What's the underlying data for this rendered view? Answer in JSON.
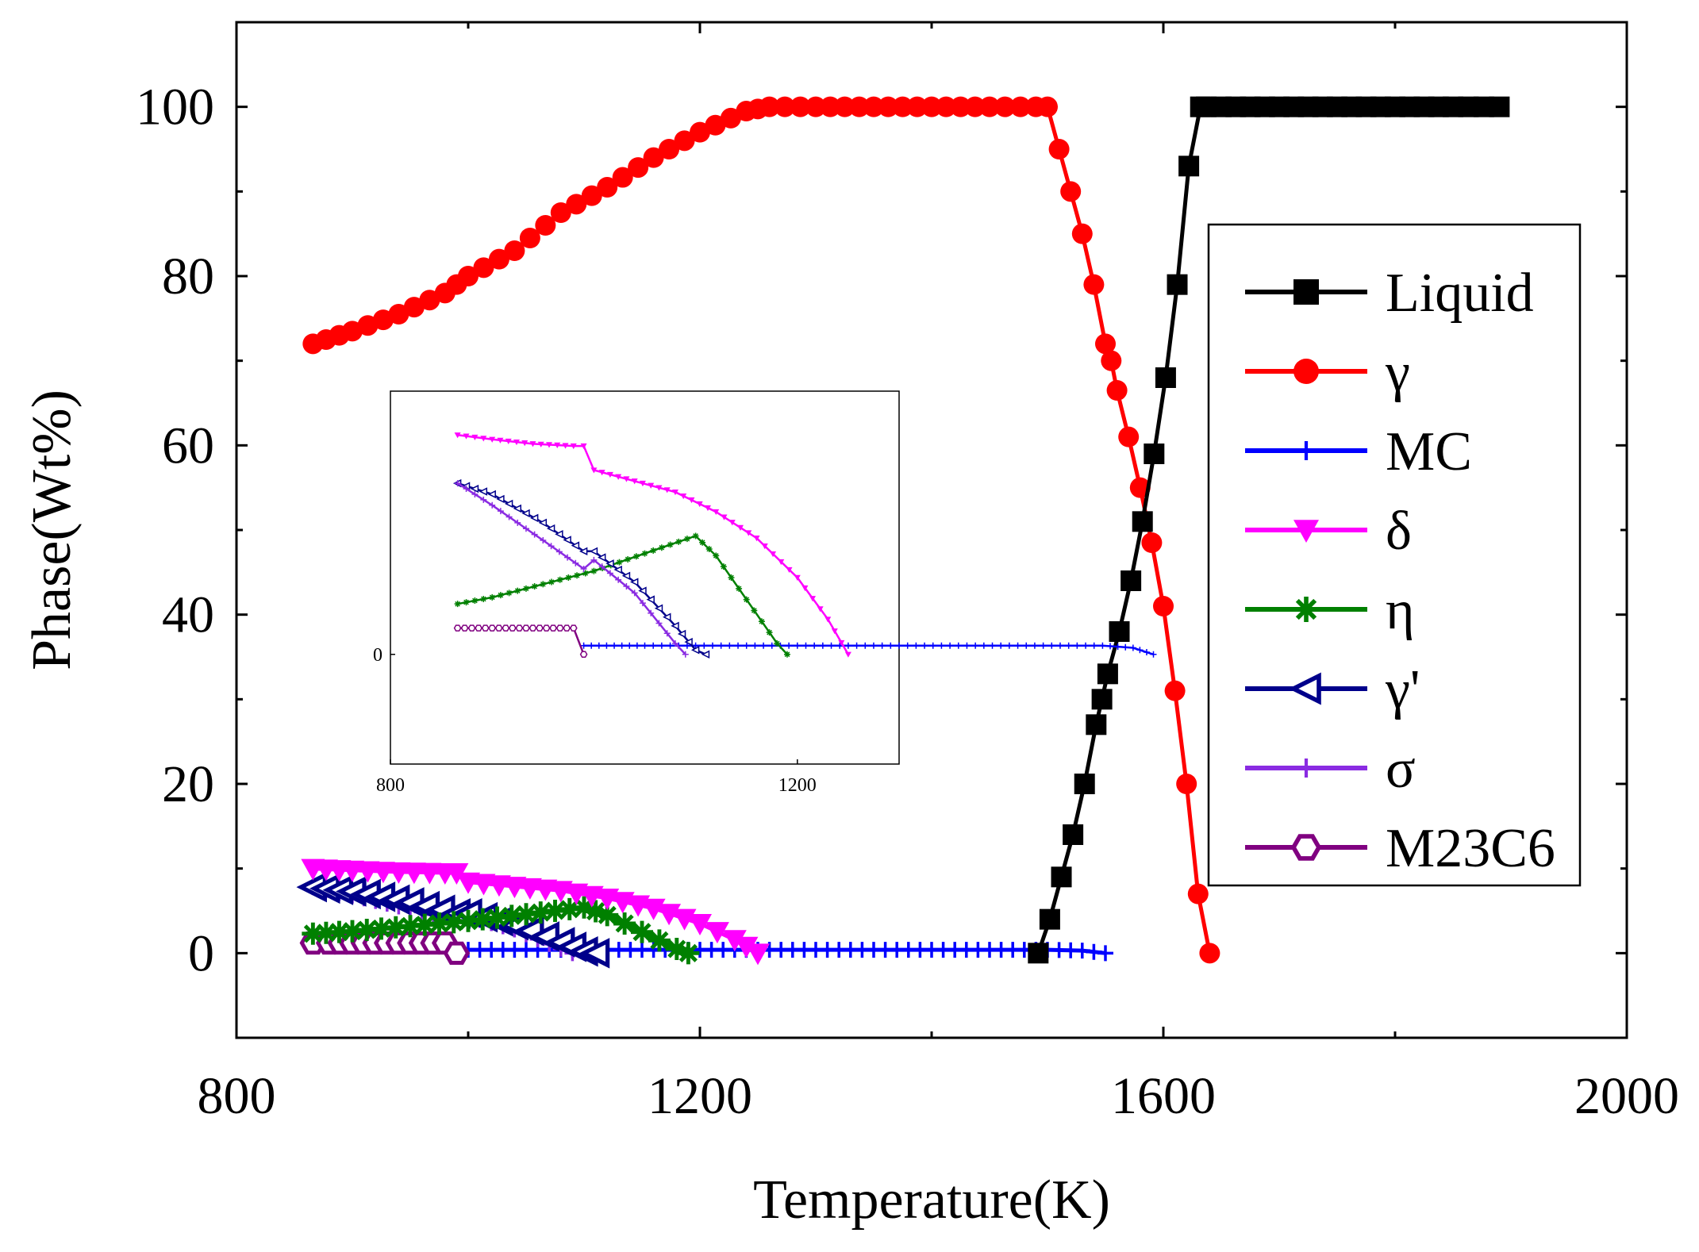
{
  "chart_data": {
    "type": "line",
    "xlabel": "Temperature(K)",
    "ylabel": "Phase(Wt%)",
    "xlim": [
      800,
      2000
    ],
    "ylim": [
      -10,
      110
    ],
    "x_ticks": [
      "800",
      "1200",
      "1600",
      "2000"
    ],
    "y_ticks": [
      "0",
      "20",
      "40",
      "60",
      "80",
      "100"
    ],
    "legend_placement": "right",
    "grid": false,
    "series": [
      {
        "name": "Liquid",
        "color": "#000000",
        "marker": "square",
        "x": [
          1492,
          1502,
          1512,
          1522,
          1532,
          1542,
          1547,
          1552,
          1562,
          1572,
          1582,
          1592,
          1602,
          1612,
          1622,
          1632,
          1637,
          1650,
          1700,
          1750,
          1800,
          1850,
          1890
        ],
        "y": [
          0,
          4,
          9,
          14,
          20,
          27,
          30,
          33,
          38,
          44,
          51,
          59,
          68,
          79,
          93,
          100,
          100,
          100,
          100,
          100,
          100,
          100,
          100
        ]
      },
      {
        "name": "γ",
        "color": "#ff0000",
        "marker": "circle",
        "x": [
          866,
          900,
          940,
          980,
          1000,
          1040,
          1080,
          1120,
          1160,
          1200,
          1240,
          1260,
          1300,
          1350,
          1400,
          1450,
          1490,
          1500,
          1510,
          1520,
          1530,
          1540,
          1550,
          1555,
          1560,
          1570,
          1580,
          1590,
          1600,
          1610,
          1620,
          1630,
          1640
        ],
        "y": [
          72,
          73.5,
          75.5,
          78,
          80,
          83,
          87.5,
          90.5,
          94,
          97,
          99.5,
          100,
          100,
          100,
          100,
          100,
          100,
          100,
          95,
          90,
          85,
          79,
          72,
          70,
          66.5,
          61,
          55,
          48.5,
          41,
          31,
          20,
          7,
          0
        ]
      },
      {
        "name": "MC",
        "color": "#0000ff",
        "marker": "plus",
        "x": [
          990,
          1050,
          1100,
          1150,
          1200,
          1250,
          1300,
          1350,
          1400,
          1450,
          1500,
          1530,
          1550
        ],
        "y": [
          0.4,
          0.4,
          0.4,
          0.4,
          0.4,
          0.4,
          0.4,
          0.4,
          0.4,
          0.4,
          0.4,
          0.3,
          0
        ]
      },
      {
        "name": "δ",
        "color": "#ff00ff",
        "marker": "triangle-down",
        "x": [
          866,
          900,
          940,
          980,
          990,
          1000,
          1040,
          1080,
          1120,
          1160,
          1200,
          1230,
          1250
        ],
        "y": [
          10,
          9.8,
          9.6,
          9.5,
          9.5,
          8.4,
          7.9,
          7.4,
          6.5,
          5.3,
          3.5,
          1.6,
          0
        ]
      },
      {
        "name": "η",
        "color": "#008000",
        "marker": "asterisk",
        "x": [
          866,
          900,
          950,
          1000,
          1050,
          1100,
          1120,
          1150,
          1180,
          1190
        ],
        "y": [
          2.3,
          2.6,
          3.2,
          3.8,
          4.6,
          5.4,
          4.5,
          2.5,
          0.5,
          0
        ]
      },
      {
        "name": "γ'",
        "color": "#00008b",
        "marker": "triangle-left",
        "x": [
          866,
          900,
          950,
          990,
          1000,
          1040,
          1080,
          1100,
          1110
        ],
        "y": [
          7.8,
          7.3,
          6,
          4.7,
          4.7,
          3.3,
          1.3,
          0.2,
          0
        ]
      },
      {
        "name": "σ",
        "color": "#8a2be2",
        "marker": "plus",
        "x": [
          866,
          900,
          950,
          990,
          1000,
          1040,
          1080,
          1090
        ],
        "y": [
          7.8,
          6.8,
          5.2,
          3.9,
          4.3,
          2.8,
          0.5,
          0
        ]
      },
      {
        "name": "M23C6",
        "color": "#800080",
        "marker": "hexagon",
        "x": [
          866,
          880,
          900,
          920,
          940,
          960,
          980,
          990
        ],
        "y": [
          1.2,
          1.2,
          1.2,
          1.2,
          1.2,
          1.2,
          1.2,
          0
        ]
      }
    ],
    "inset": {
      "x_ticks": [
        "800",
        "1200"
      ],
      "y_ticks": [
        "0"
      ]
    }
  }
}
